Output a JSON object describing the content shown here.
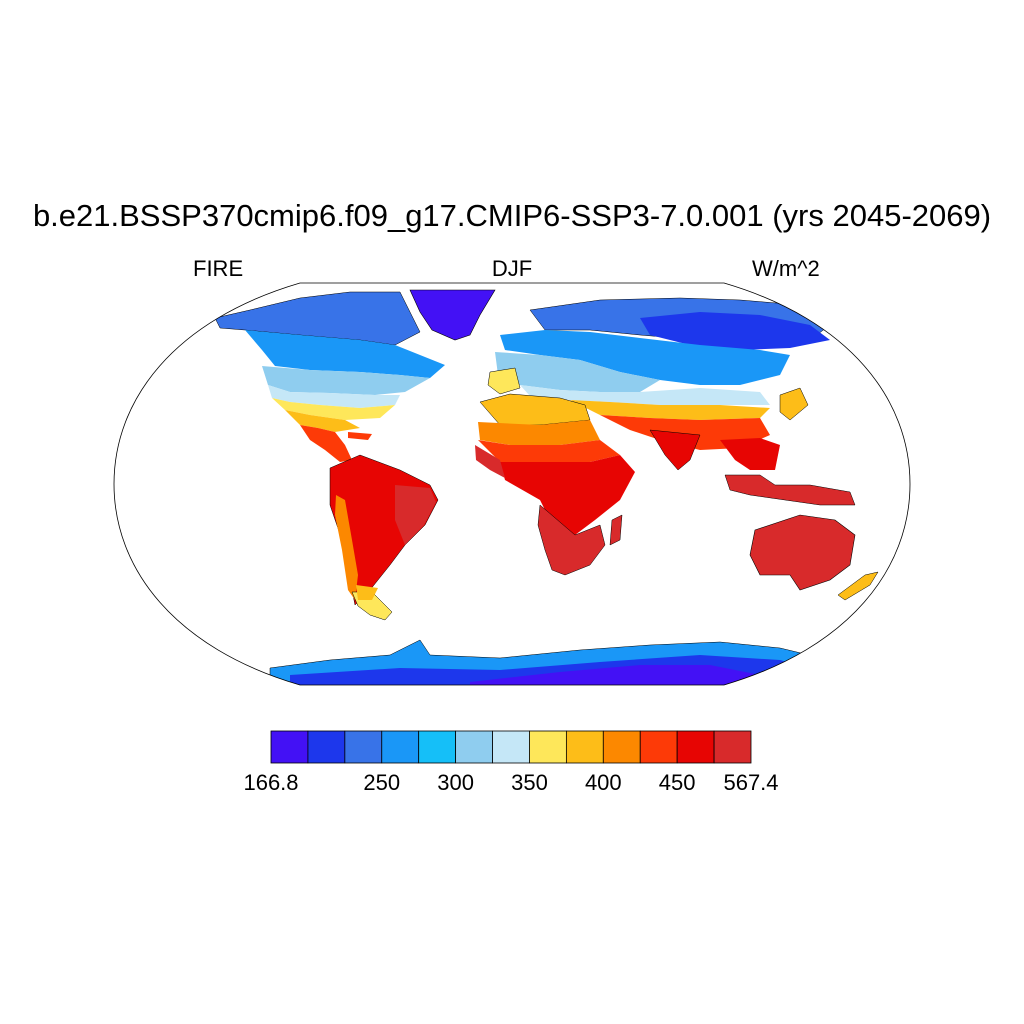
{
  "title": "b.e21.BSSP370cmip6.f09_g17.CMIP6-SSP3-7.0.001 (yrs 2045-2069)",
  "left_label": "FIRE",
  "center_label": "DJF",
  "right_label": "W/m^2",
  "colorbar": {
    "colors": [
      "#4311f5",
      "#1d37ec",
      "#3873e8",
      "#1a97f7",
      "#15bff8",
      "#8fcdef",
      "#c5e7f7",
      "#fee75a",
      "#fdbd18",
      "#fc8800",
      "#fd3a07",
      "#e70503",
      "#d82a2b"
    ],
    "labels": [
      "166.8",
      "250",
      "300",
      "350",
      "400",
      "450",
      "567.4"
    ]
  },
  "map": {
    "projection": "Robinson",
    "ocean_color": "#ffffff",
    "coastline_color": "#000000"
  }
}
